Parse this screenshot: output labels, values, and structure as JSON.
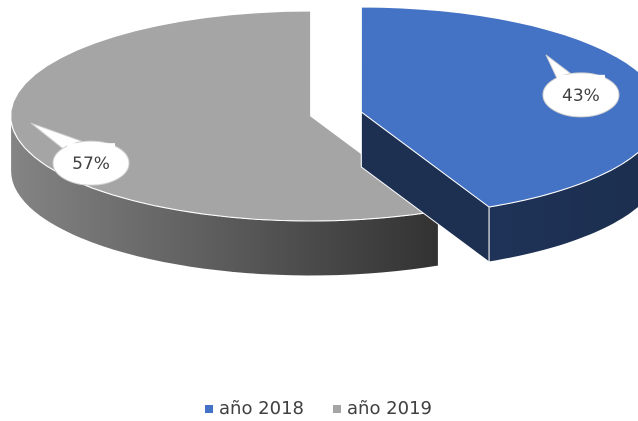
{
  "chart_data": {
    "type": "pie",
    "categories": [
      "año 2018",
      "año 2019"
    ],
    "values": [
      43,
      57
    ],
    "value_labels": [
      "43%",
      "57%"
    ],
    "colors": [
      "#4472c4",
      "#a5a5a5"
    ],
    "legend": "bottom"
  }
}
